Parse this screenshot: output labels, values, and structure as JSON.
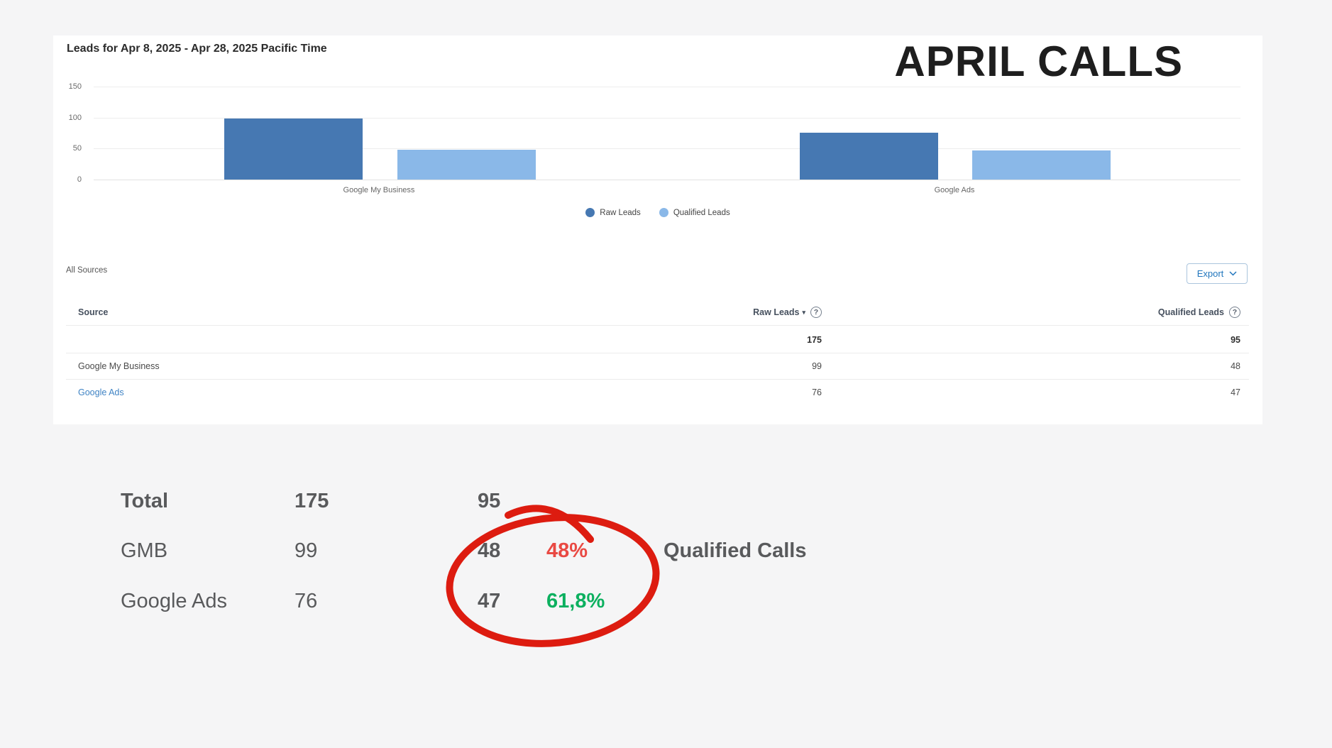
{
  "header": {
    "report_title": "Leads for Apr 8, 2025 - Apr 28, 2025 Pacific Time",
    "overlay_title": "APRIL CALLS"
  },
  "chart_data": {
    "type": "bar",
    "title": "Leads for Apr 8, 2025 - Apr 28, 2025 Pacific Time",
    "categories": [
      "Google My Business",
      "Google Ads"
    ],
    "series": [
      {
        "name": "Raw Leads",
        "color": "#4678b2",
        "values": [
          99,
          76
        ]
      },
      {
        "name": "Qualified Leads",
        "color": "#8ab8e8",
        "values": [
          48,
          47
        ]
      }
    ],
    "xlabel": "",
    "ylabel": "",
    "ylim": [
      0,
      150
    ],
    "yticks": [
      0,
      50,
      100,
      150
    ],
    "grid": true,
    "legend_position": "bottom"
  },
  "toolbar": {
    "filter_label": "All Sources",
    "export_label": "Export"
  },
  "table": {
    "columns": {
      "source": "Source",
      "raw": "Raw Leads",
      "qualified": "Qualified Leads"
    },
    "totals": {
      "raw": "175",
      "qualified": "95"
    },
    "rows": [
      {
        "source": "Google My Business",
        "raw": "99",
        "qualified": "48"
      },
      {
        "source": "Google Ads",
        "raw": "76",
        "qualified": "47"
      }
    ]
  },
  "summary": {
    "rows": [
      {
        "label": "Total",
        "raw": "175",
        "qualified": "95",
        "percent": ""
      },
      {
        "label": "GMB",
        "raw": "99",
        "qualified": "48",
        "percent": "48%",
        "percent_color": "#e94943"
      },
      {
        "label": "Google Ads",
        "raw": "76",
        "qualified": "47",
        "percent": "61,8%",
        "percent_color": "#0cb05f"
      }
    ],
    "annotation_label": "Qualified Calls",
    "circle_color": "#dd1c10"
  }
}
